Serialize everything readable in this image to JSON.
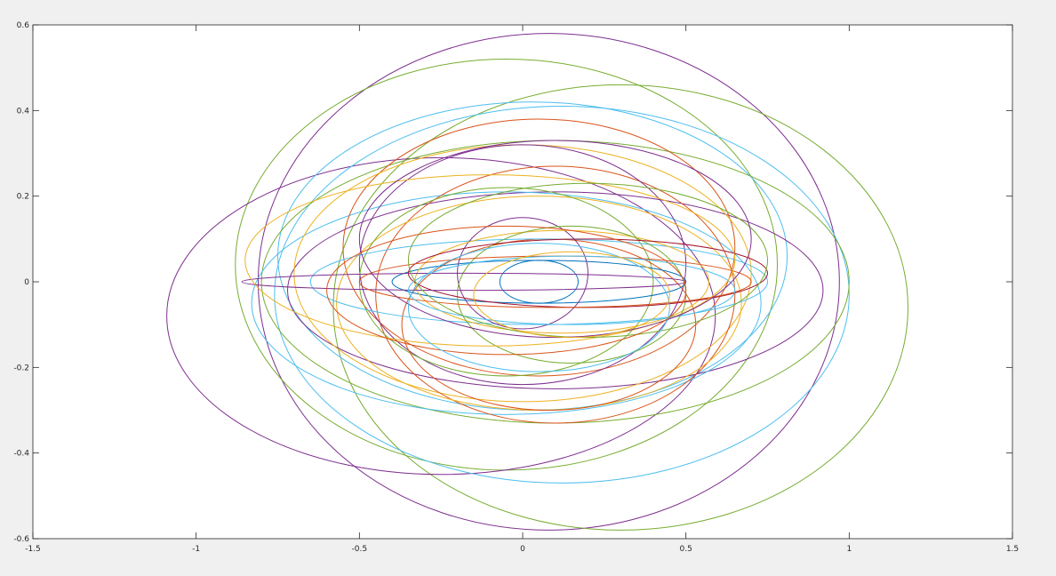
{
  "chart_data": {
    "type": "line",
    "title": "",
    "xlabel": "",
    "ylabel": "",
    "xlim": [
      -1.5,
      1.5
    ],
    "ylim": [
      -0.6,
      0.6
    ],
    "grid": false,
    "legend": "none",
    "xticks": [
      -1.5,
      -1,
      -0.5,
      0,
      0.5,
      1,
      1.5
    ],
    "xtick_labels": [
      "-1.5",
      "-1",
      "-0.5",
      "0",
      "0.5",
      "1",
      "1.5"
    ],
    "yticks": [
      -0.6,
      -0.4,
      -0.2,
      0,
      0.2,
      0.4,
      0.6
    ],
    "ytick_labels": [
      "-0.6",
      "-0.4",
      "-0.2",
      "0",
      "0.2",
      "0.4",
      "0.6"
    ],
    "colors": {
      "blue": "#0072bd",
      "orange": "#d95319",
      "yellow": "#edb120",
      "purple": "#7e2f8e",
      "green": "#77ac30",
      "cyan": "#4dbeee",
      "red": "#a2142f",
      "axes_bg": "#ffffff",
      "axes_line": "#262626",
      "figure_bg": "#f0f0f0"
    },
    "series": [
      {
        "color": "purple",
        "cx": 0.08,
        "cy": 0.0,
        "rx": 0.89,
        "ry": 0.58
      },
      {
        "color": "green",
        "cx": 0.3,
        "cy": -0.06,
        "rx": 0.88,
        "ry": 0.52
      },
      {
        "color": "green",
        "cx": -0.05,
        "cy": 0.04,
        "rx": 0.83,
        "ry": 0.48
      },
      {
        "color": "purple",
        "cx": -0.25,
        "cy": -0.08,
        "rx": 0.84,
        "ry": 0.37
      },
      {
        "color": "cyan",
        "cx": 0.12,
        "cy": -0.03,
        "rx": 0.88,
        "ry": 0.44
      },
      {
        "color": "cyan",
        "cx": 0.03,
        "cy": 0.06,
        "rx": 0.78,
        "ry": 0.36
      },
      {
        "color": "green",
        "cx": 0.1,
        "cy": 0.0,
        "rx": 0.9,
        "ry": 0.33
      },
      {
        "color": "purple",
        "cx": 0.1,
        "cy": -0.02,
        "rx": 0.82,
        "ry": 0.23
      },
      {
        "color": "cyan",
        "cx": -0.05,
        "cy": -0.05,
        "rx": 0.78,
        "ry": 0.26
      },
      {
        "color": "orange",
        "cx": 0.05,
        "cy": 0.08,
        "rx": 0.6,
        "ry": 0.3
      },
      {
        "color": "yellow",
        "cx": 0.0,
        "cy": 0.02,
        "rx": 0.7,
        "ry": 0.3
      },
      {
        "color": "orange",
        "cx": 0.1,
        "cy": -0.03,
        "rx": 0.55,
        "ry": 0.3
      },
      {
        "color": "purple",
        "cx": 0.0,
        "cy": 0.04,
        "rx": 0.5,
        "ry": 0.28
      },
      {
        "color": "yellow",
        "cx": 0.05,
        "cy": -0.05,
        "rx": 0.62,
        "ry": 0.25
      },
      {
        "color": "green",
        "cx": -0.05,
        "cy": 0.0,
        "rx": 0.45,
        "ry": 0.22
      },
      {
        "color": "orange",
        "cx": 0.08,
        "cy": -0.1,
        "rx": 0.45,
        "ry": 0.2
      },
      {
        "color": "cyan",
        "cx": 0.05,
        "cy": 0.0,
        "rx": 0.7,
        "ry": 0.1
      },
      {
        "color": "blue",
        "cx": 0.05,
        "cy": 0.0,
        "rx": 0.45,
        "ry": 0.05
      },
      {
        "color": "purple",
        "cx": 0.0,
        "cy": 0.02,
        "rx": 0.2,
        "ry": 0.13
      },
      {
        "color": "blue",
        "cx": 0.05,
        "cy": 0.0,
        "rx": 0.12,
        "ry": 0.05
      },
      {
        "color": "yellow",
        "cx": 0.12,
        "cy": 0.0,
        "rx": 0.45,
        "ry": 0.12
      },
      {
        "color": "green",
        "cx": 0.15,
        "cy": -0.03,
        "rx": 0.35,
        "ry": 0.16
      },
      {
        "color": "red",
        "cx": 0.2,
        "cy": 0.02,
        "rx": 0.55,
        "ry": 0.08
      },
      {
        "color": "purple",
        "cx": -0.18,
        "cy": 0.0,
        "rx": 0.68,
        "ry": 0.02
      },
      {
        "color": "orange",
        "cx": 0.1,
        "cy": 0.0,
        "rx": 0.6,
        "ry": 0.06
      },
      {
        "color": "cyan",
        "cx": 0.15,
        "cy": -0.02,
        "rx": 0.5,
        "ry": 0.08
      },
      {
        "color": "yellow",
        "cx": -0.1,
        "cy": 0.05,
        "rx": 0.75,
        "ry": 0.2
      },
      {
        "color": "green",
        "cx": 0.2,
        "cy": 0.05,
        "rx": 0.55,
        "ry": 0.18
      },
      {
        "color": "purple",
        "cx": 0.1,
        "cy": 0.1,
        "rx": 0.6,
        "ry": 0.23
      },
      {
        "color": "orange",
        "cx": -0.05,
        "cy": -0.02,
        "rx": 0.55,
        "ry": 0.15
      },
      {
        "color": "cyan",
        "cx": 0.05,
        "cy": -0.06,
        "rx": 0.4,
        "ry": 0.15
      },
      {
        "color": "yellow",
        "cx": 0.15,
        "cy": -0.03,
        "rx": 0.3,
        "ry": 0.1
      }
    ]
  }
}
